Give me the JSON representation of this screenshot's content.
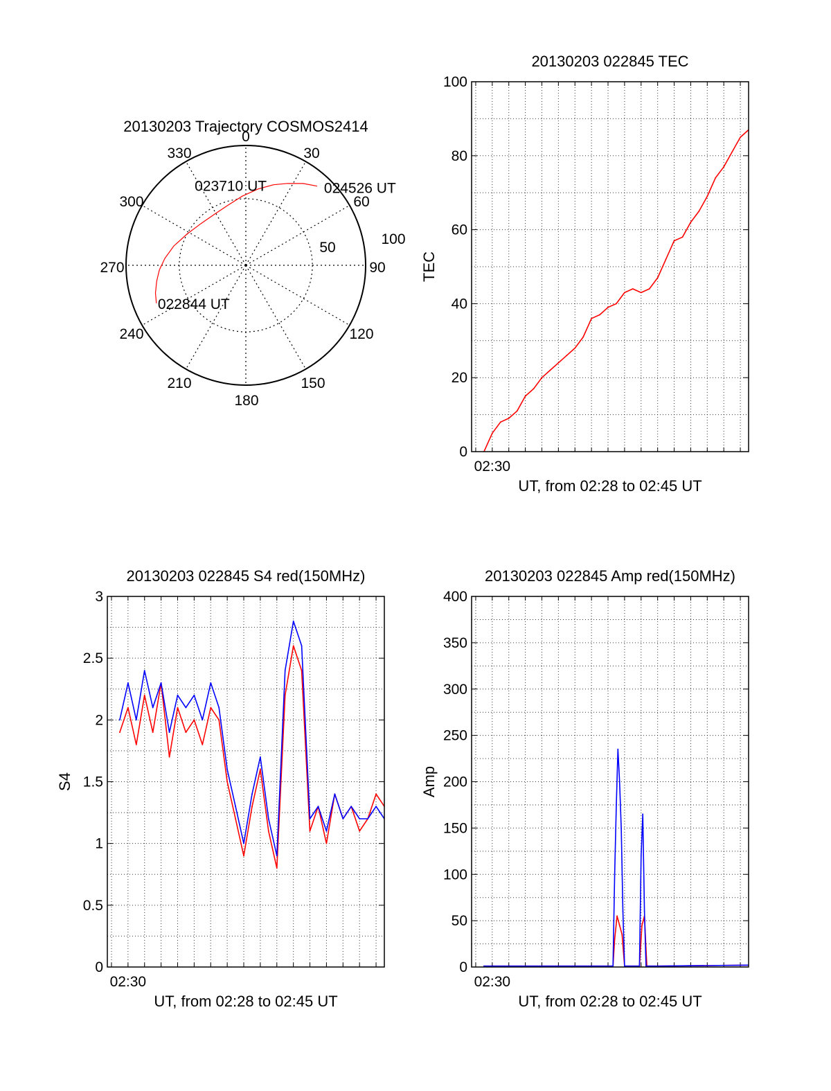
{
  "colors": {
    "red": "#ff0000",
    "blue": "#0000ff",
    "axis": "#000000",
    "grid": "#000000",
    "background": "#ffffff"
  },
  "chart_data": [
    {
      "id": "trajectory",
      "type": "scatter",
      "subtype": "polar",
      "title": "20130203 Trajectory COSMOS2414",
      "azimuth_labels": [
        "0",
        "30",
        "60",
        "90",
        "120",
        "150",
        "180",
        "210",
        "240",
        "270",
        "300",
        "330"
      ],
      "radial_labels": [
        "50",
        "100"
      ],
      "grid": true,
      "series": [
        {
          "color": "#ff0000",
          "points": [
            {
              "azimuth": 247,
              "elevation": 17
            },
            {
              "azimuth": 253,
              "elevation": 19
            },
            {
              "azimuth": 260,
              "elevation": 22
            },
            {
              "azimuth": 267,
              "elevation": 25
            },
            {
              "azimuth": 275,
              "elevation": 29
            },
            {
              "azimuth": 285,
              "elevation": 34
            },
            {
              "azimuth": 298,
              "elevation": 40
            },
            {
              "azimuth": 313,
              "elevation": 44
            },
            {
              "azimuth": 328,
              "elevation": 45
            },
            {
              "azimuth": 343,
              "elevation": 43
            },
            {
              "azimuth": 357,
              "elevation": 38
            },
            {
              "azimuth": 9,
              "elevation": 32
            },
            {
              "azimuth": 19,
              "elevation": 26
            },
            {
              "azimuth": 27,
              "elevation": 21
            },
            {
              "azimuth": 35,
              "elevation": 15
            },
            {
              "azimuth": 42,
              "elevation": 10
            }
          ]
        }
      ],
      "annotations": [
        {
          "text": "022844 UT",
          "azimuth": 247,
          "elevation": 17
        },
        {
          "text": "023710 UT",
          "azimuth": 328,
          "elevation": 45
        },
        {
          "text": "024526 UT",
          "azimuth": 42,
          "elevation": 10
        }
      ]
    },
    {
      "id": "tec",
      "type": "line",
      "title": "20130203 022845 TEC",
      "xlabel": "UT, from 02:28 to 02:45 UT",
      "ylabel": "TEC",
      "xlim": [
        28.75,
        45.5
      ],
      "ylim": [
        0,
        100
      ],
      "yticks": [
        0,
        20,
        40,
        60,
        80,
        100
      ],
      "xtick_labels": [
        {
          "x": 30,
          "label": "02:30"
        }
      ],
      "grid": true,
      "series": [
        {
          "color": "#ff0000",
          "x": [
            29.5,
            30.0,
            30.5,
            31.0,
            31.5,
            32.0,
            32.5,
            33.0,
            33.5,
            34.0,
            34.5,
            35.0,
            35.5,
            36.0,
            36.5,
            37.0,
            37.5,
            38.0,
            38.5,
            39.0,
            39.5,
            40.0,
            40.5,
            41.0,
            41.5,
            42.0,
            42.5,
            43.0,
            43.5,
            44.0,
            44.5,
            45.0,
            45.5
          ],
          "y": [
            0,
            5,
            8,
            9,
            11,
            15,
            17,
            20,
            22,
            24,
            26,
            28,
            31,
            36,
            37,
            39,
            40,
            43,
            44,
            43,
            44,
            47,
            52,
            57,
            58,
            62,
            65,
            69,
            74,
            77,
            81,
            85,
            87
          ]
        }
      ]
    },
    {
      "id": "s4",
      "type": "line",
      "title": "20130203 022845 S4 red(150MHz)",
      "xlabel": "UT, from 02:28 to 02:45 UT",
      "ylabel": "S4",
      "xlim": [
        28.75,
        45.5
      ],
      "ylim": [
        0,
        3
      ],
      "yticks": [
        0,
        0.5,
        1,
        1.5,
        2,
        2.5,
        3
      ],
      "ytick_labels": [
        "0",
        "0.5",
        "1",
        "1.5",
        "2",
        "2.5",
        "3"
      ],
      "xtick_labels": [
        {
          "x": 30,
          "label": "02:30"
        }
      ],
      "grid": true,
      "series": [
        {
          "color": "#ff0000",
          "x": [
            29.5,
            30.0,
            30.5,
            31.0,
            31.5,
            32.0,
            32.5,
            33.0,
            33.5,
            34.0,
            34.5,
            35.0,
            35.5,
            36.0,
            36.5,
            37.0,
            37.5,
            38.0,
            38.5,
            39.0,
            39.5,
            40.0,
            40.5,
            41.0,
            41.5,
            42.0,
            42.5,
            43.0,
            43.5,
            44.0,
            44.5,
            45.0,
            45.5
          ],
          "y": [
            1.9,
            2.1,
            1.8,
            2.2,
            1.9,
            2.3,
            1.7,
            2.1,
            1.9,
            2.0,
            1.8,
            2.1,
            2.0,
            1.5,
            1.2,
            0.9,
            1.3,
            1.6,
            1.1,
            0.8,
            2.2,
            2.6,
            2.4,
            1.1,
            1.3,
            1.0,
            1.4,
            1.2,
            1.3,
            1.1,
            1.2,
            1.4,
            1.3
          ]
        },
        {
          "color": "#0000ff",
          "x": [
            29.5,
            30.0,
            30.5,
            31.0,
            31.5,
            32.0,
            32.5,
            33.0,
            33.5,
            34.0,
            34.5,
            35.0,
            35.5,
            36.0,
            36.5,
            37.0,
            37.5,
            38.0,
            38.5,
            39.0,
            39.5,
            40.0,
            40.5,
            41.0,
            41.5,
            42.0,
            42.5,
            43.0,
            43.5,
            44.0,
            44.5,
            45.0,
            45.5
          ],
          "y": [
            2.0,
            2.3,
            2.0,
            2.4,
            2.1,
            2.3,
            1.9,
            2.2,
            2.1,
            2.2,
            2.0,
            2.3,
            2.1,
            1.6,
            1.3,
            1.0,
            1.4,
            1.7,
            1.2,
            0.9,
            2.4,
            2.8,
            2.6,
            1.2,
            1.3,
            1.1,
            1.4,
            1.2,
            1.3,
            1.2,
            1.2,
            1.3,
            1.2
          ]
        }
      ]
    },
    {
      "id": "amp",
      "type": "line",
      "title": "20130203 022845 Amp red(150MHz)",
      "xlabel": "UT, from 02:28 to 02:45 UT",
      "ylabel": "Amp",
      "xlim": [
        28.75,
        45.5
      ],
      "ylim": [
        0,
        400
      ],
      "yticks": [
        0,
        50,
        100,
        150,
        200,
        250,
        300,
        350,
        400
      ],
      "xtick_labels": [
        {
          "x": 30,
          "label": "02:30"
        }
      ],
      "grid": true,
      "series": [
        {
          "color": "#ff0000",
          "x": [
            29.5,
            36.0,
            37.3,
            37.4,
            37.55,
            37.7,
            37.85,
            38.0,
            38.9,
            39.05,
            39.2,
            39.35,
            40.0,
            45.5
          ],
          "y": [
            1,
            1,
            1,
            30,
            55,
            45,
            35,
            1,
            1,
            45,
            55,
            1,
            1,
            2
          ]
        },
        {
          "color": "#0000ff",
          "x": [
            29.5,
            36.0,
            37.3,
            37.4,
            37.5,
            37.6,
            37.7,
            37.8,
            37.9,
            38.0,
            38.9,
            39.0,
            39.1,
            39.2,
            39.3,
            40.0,
            45.5
          ],
          "y": [
            1,
            1,
            1,
            100,
            175,
            235,
            200,
            150,
            60,
            1,
            1,
            120,
            165,
            60,
            1,
            1,
            2
          ]
        }
      ]
    }
  ]
}
